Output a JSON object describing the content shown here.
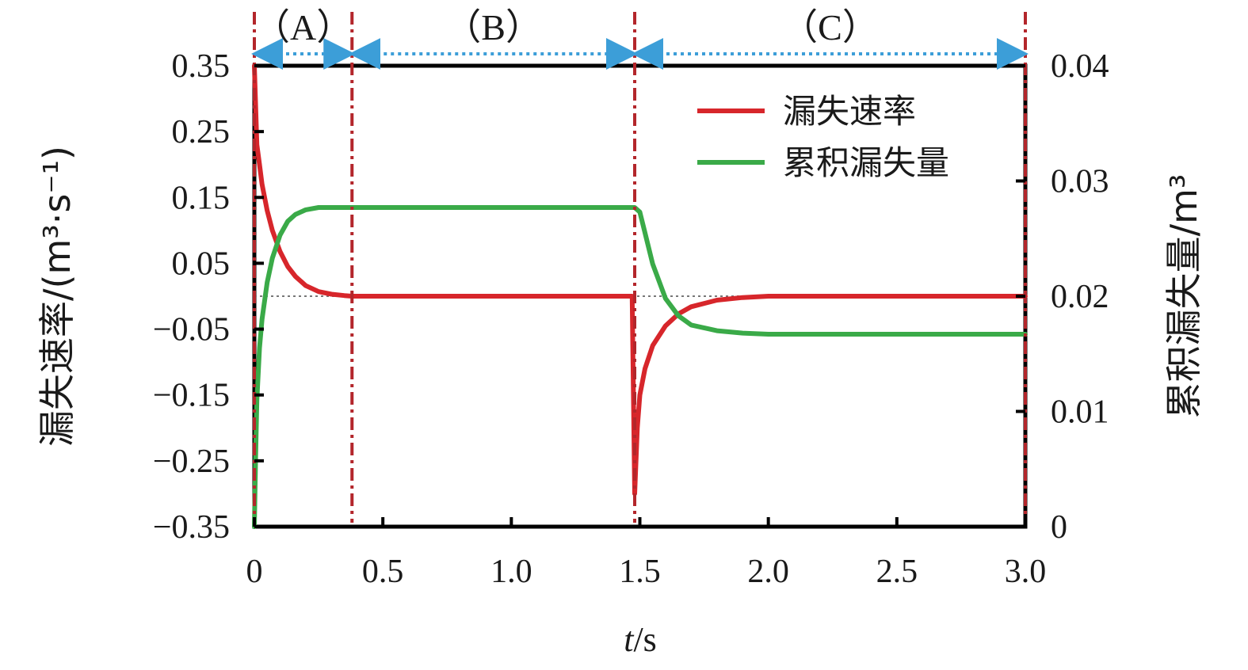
{
  "chart_data": {
    "type": "line",
    "xlabel": "t/s",
    "xlabel_italic": "t",
    "xlabel_rest": "/s",
    "ylabel_left": "漏失速率/(m³·s⁻¹)",
    "ylabel_right": "累积漏失量/m³",
    "xlim": [
      0,
      3.0
    ],
    "ylim_left": [
      -0.35,
      0.35
    ],
    "ylim_right": [
      0,
      0.04
    ],
    "x_ticks": [
      "0",
      "0.5",
      "1.0",
      "1.5",
      "2.0",
      "2.5",
      "3.0"
    ],
    "x_tick_values": [
      0,
      0.5,
      1.0,
      1.5,
      2.0,
      2.5,
      3.0
    ],
    "left_ticks": [
      "0.35",
      "0.25",
      "0.15",
      "0.05",
      "−0.05",
      "−0.15",
      "−0.25",
      "−0.35"
    ],
    "left_tick_values": [
      0.35,
      0.25,
      0.15,
      0.05,
      -0.05,
      -0.15,
      -0.25,
      -0.35
    ],
    "right_ticks": [
      "0.04",
      "0.03",
      "0.02",
      "0.01",
      "0"
    ],
    "right_tick_values": [
      0.04,
      0.03,
      0.02,
      0.01,
      0
    ],
    "regions": [
      {
        "label": "（A）",
        "start": 0,
        "end": 0.38
      },
      {
        "label": "（B）",
        "start": 0.38,
        "end": 1.48
      },
      {
        "label": "（C）",
        "start": 1.48,
        "end": 3.0
      }
    ],
    "legend_position": "top-right",
    "series": [
      {
        "name": "漏失速率",
        "axis": "left",
        "color": "#d7262b",
        "x": [
          0,
          0.01,
          0.02,
          0.03,
          0.05,
          0.07,
          0.1,
          0.13,
          0.16,
          0.2,
          0.25,
          0.3,
          0.35,
          0.38,
          0.6,
          1.0,
          1.3,
          1.47,
          1.48,
          1.49,
          1.5,
          1.52,
          1.55,
          1.6,
          1.65,
          1.7,
          1.8,
          1.9,
          2.0,
          2.5,
          3.0
        ],
        "values": [
          0.35,
          0.23,
          0.2,
          0.17,
          0.13,
          0.1,
          0.068,
          0.045,
          0.03,
          0.016,
          0.007,
          0.003,
          0.001,
          0.0,
          0.0,
          0.0,
          0.0,
          0.0,
          -0.3,
          -0.2,
          -0.15,
          -0.11,
          -0.075,
          -0.045,
          -0.027,
          -0.016,
          -0.006,
          -0.002,
          0.0,
          0.0,
          0.0
        ]
      },
      {
        "name": "累积漏失量",
        "axis": "right",
        "color": "#3aaa48",
        "x": [
          0,
          0.005,
          0.01,
          0.02,
          0.03,
          0.05,
          0.07,
          0.1,
          0.13,
          0.16,
          0.2,
          0.25,
          0.3,
          0.38,
          0.6,
          1.0,
          1.3,
          1.48,
          1.5,
          1.52,
          1.55,
          1.6,
          1.65,
          1.7,
          1.8,
          1.9,
          2.0,
          2.5,
          3.0
        ],
        "values": [
          0.0,
          0.006,
          0.011,
          0.0155,
          0.018,
          0.0212,
          0.0233,
          0.0253,
          0.0265,
          0.0271,
          0.0275,
          0.0277,
          0.0277,
          0.0277,
          0.0277,
          0.0277,
          0.0277,
          0.0277,
          0.0273,
          0.0255,
          0.0228,
          0.0198,
          0.0183,
          0.0175,
          0.017,
          0.0168,
          0.0167,
          0.0167,
          0.0167
        ]
      }
    ]
  }
}
